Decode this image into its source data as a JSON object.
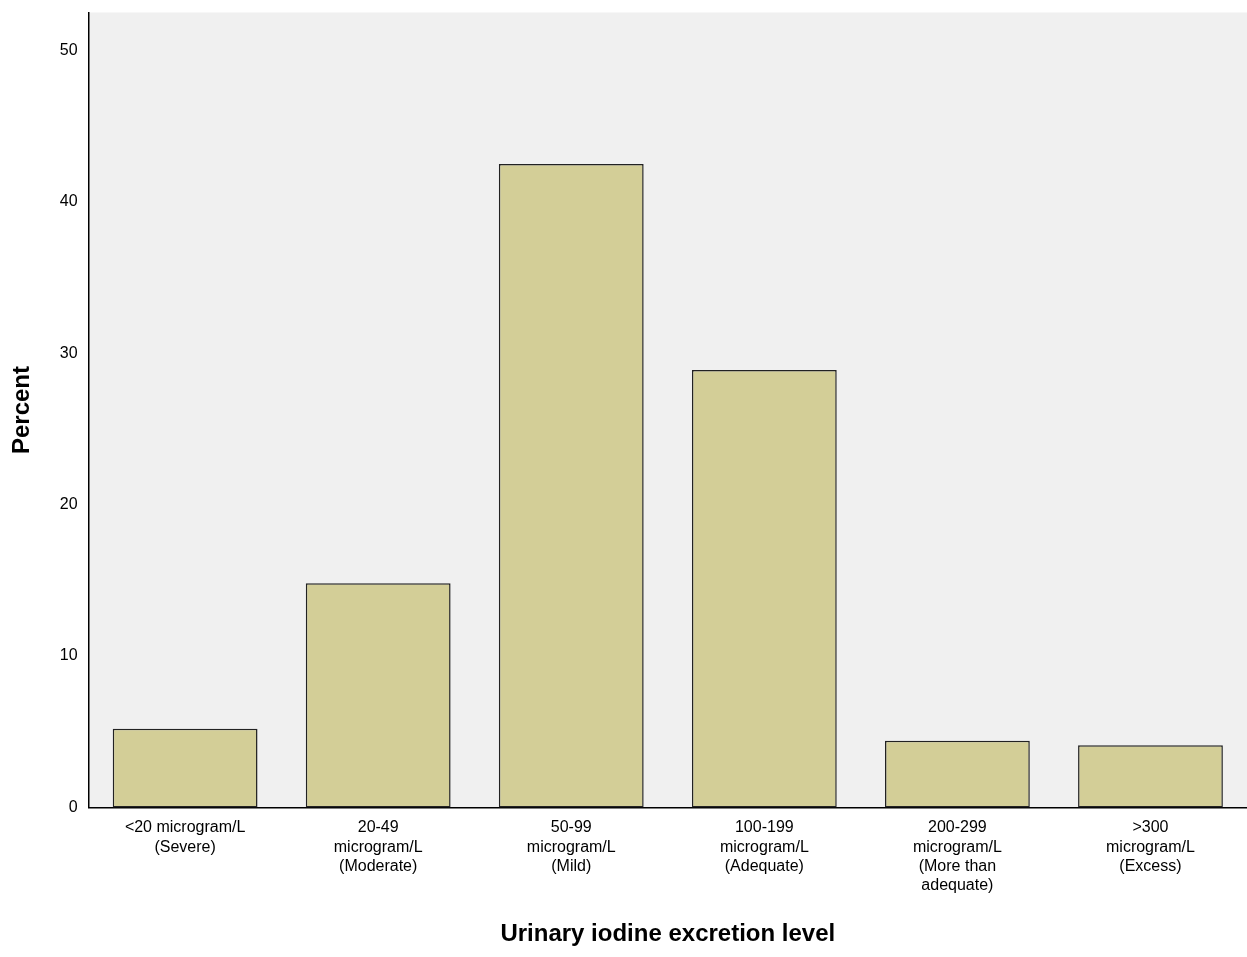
{
  "chart_data": {
    "type": "bar",
    "xlabel": "Urinary iodine excretion level",
    "ylabel": "Percent",
    "categories": [
      "<20 microgram/L\n(Severe)",
      "20-49\nmicrogram/L\n(Moderate)",
      "50-99\nmicrogram/L\n(Mild)",
      "100-199\nmicrogram/L\n(Adequate)",
      "200-299\nmicrogram/L\n(More than\nadequate)",
      ">300\nmicrogram/L\n(Excess)"
    ],
    "values": [
      5.2,
      14.8,
      42.5,
      28.9,
      4.4,
      4.1
    ],
    "color": "#d3ce97",
    "ylim": [
      0,
      52.5
    ],
    "yticks": [
      0,
      10,
      20,
      30,
      40,
      50
    ],
    "grid": false,
    "legend": false
  }
}
